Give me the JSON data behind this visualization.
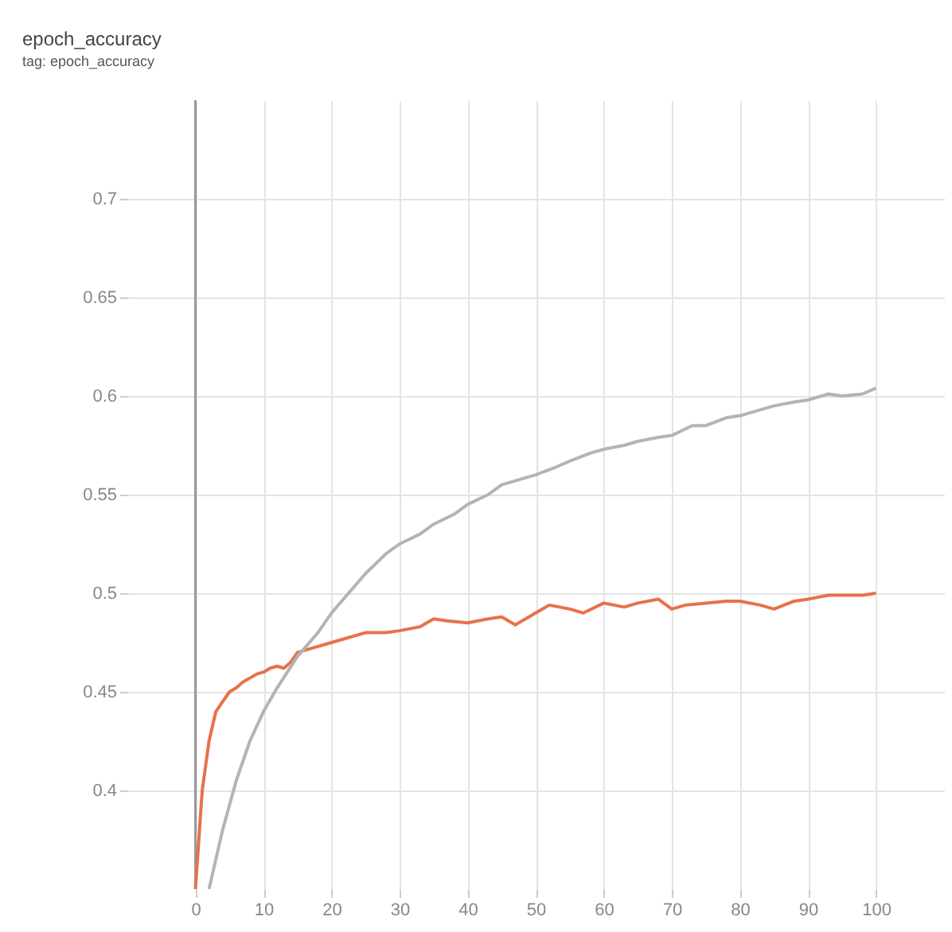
{
  "chart_data": {
    "type": "line",
    "title": "epoch_accuracy",
    "subtitle": "tag: epoch_accuracy",
    "series": [
      {
        "color": "#e8714a",
        "x": [
          0,
          1,
          2,
          3,
          4,
          5,
          6,
          7,
          8,
          9,
          10,
          11,
          12,
          13,
          14,
          15,
          17,
          20,
          22,
          25,
          28,
          30,
          33,
          35,
          37,
          40,
          43,
          45,
          47,
          50,
          52,
          55,
          57,
          60,
          63,
          65,
          68,
          70,
          72,
          75,
          78,
          80,
          83,
          85,
          88,
          90,
          93,
          95,
          98,
          100
        ],
        "values": [
          0.35,
          0.4,
          0.425,
          0.44,
          0.445,
          0.45,
          0.452,
          0.455,
          0.457,
          0.459,
          0.46,
          0.462,
          0.463,
          0.462,
          0.465,
          0.47,
          0.472,
          0.475,
          0.477,
          0.48,
          0.48,
          0.481,
          0.483,
          0.487,
          0.486,
          0.485,
          0.487,
          0.488,
          0.484,
          0.49,
          0.494,
          0.492,
          0.49,
          0.495,
          0.493,
          0.495,
          0.497,
          0.492,
          0.494,
          0.495,
          0.496,
          0.496,
          0.494,
          0.492,
          0.496,
          0.497,
          0.499,
          0.499,
          0.499,
          0.5
        ]
      },
      {
        "color": "#b4b4b4",
        "x": [
          2,
          4,
          6,
          8,
          10,
          12,
          15,
          18,
          20,
          23,
          25,
          28,
          30,
          33,
          35,
          38,
          40,
          43,
          45,
          48,
          50,
          53,
          55,
          58,
          60,
          63,
          65,
          68,
          70,
          73,
          75,
          78,
          80,
          83,
          85,
          88,
          90,
          93,
          95,
          98,
          100
        ],
        "values": [
          0.35,
          0.38,
          0.405,
          0.425,
          0.44,
          0.452,
          0.468,
          0.48,
          0.49,
          0.502,
          0.51,
          0.52,
          0.525,
          0.53,
          0.535,
          0.54,
          0.545,
          0.55,
          0.555,
          0.558,
          0.56,
          0.564,
          0.567,
          0.571,
          0.573,
          0.575,
          0.577,
          0.579,
          0.58,
          0.585,
          0.585,
          0.589,
          0.59,
          0.593,
          0.595,
          0.597,
          0.598,
          0.601,
          0.6,
          0.601,
          0.604
        ]
      }
    ],
    "xlim": [
      -10,
      110
    ],
    "xticks": [
      0,
      10,
      20,
      30,
      40,
      50,
      60,
      70,
      80,
      90,
      100
    ],
    "ylim": [
      0.35,
      0.75
    ],
    "yticks": [
      0.4,
      0.45,
      0.5,
      0.55,
      0.6,
      0.65,
      0.7
    ],
    "ref_lines": [
      {
        "axis": "x",
        "value": 0,
        "color": "#999999"
      }
    ],
    "grid": true,
    "marker": "none",
    "line_style": "solid"
  }
}
